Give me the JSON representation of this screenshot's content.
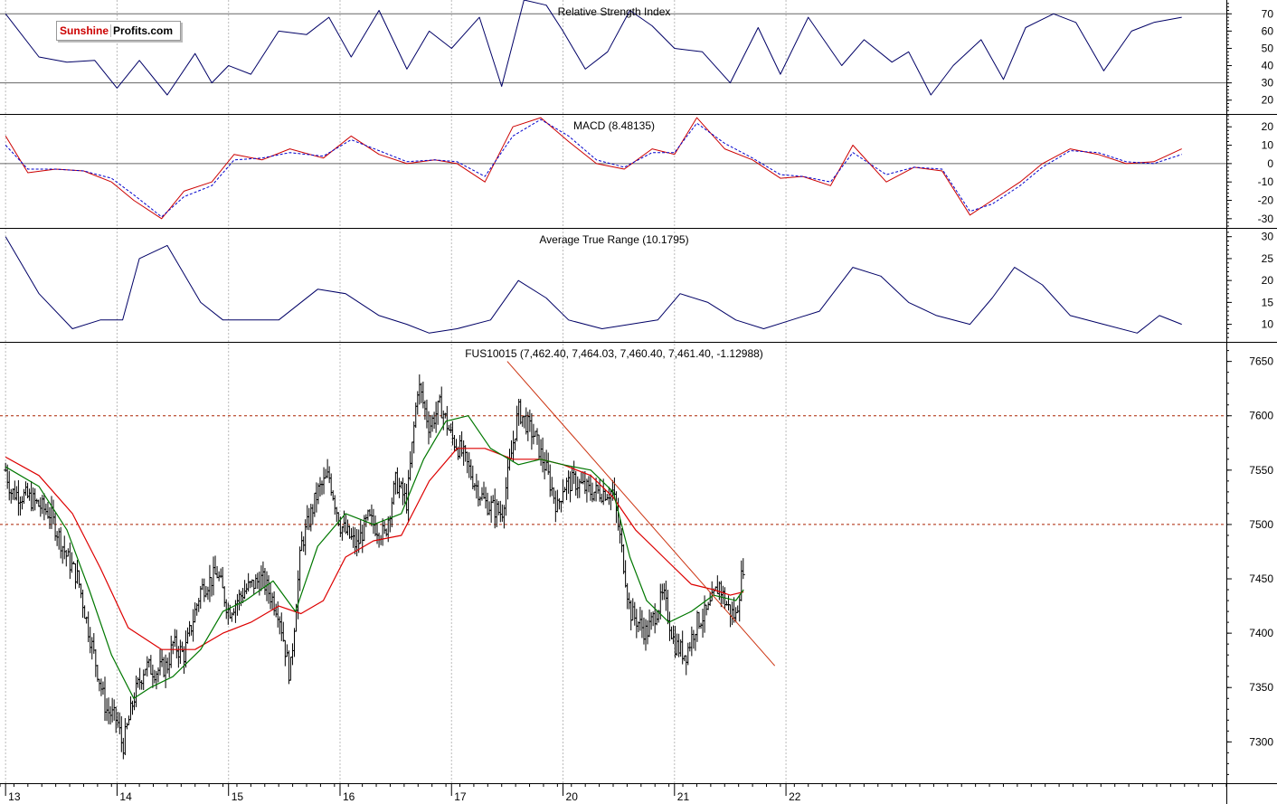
{
  "branding": {
    "logo_part1": "Sunshine",
    "logo_part2": "Profits.com"
  },
  "colors": {
    "rsi": "#000066",
    "macd": "#cc0000",
    "macd_signal": "#0000cc",
    "atr": "#000066",
    "price": "#000000",
    "ma_short": "#007700",
    "ma_long": "#dd0000",
    "trendline": "#cc3311",
    "refline": "#aa2200"
  },
  "chart_data": [
    {
      "type": "line",
      "title": "Relative Strength Index",
      "ylim": [
        12,
        78
      ],
      "yticks": [
        70,
        60,
        50,
        40,
        30,
        20
      ],
      "reference_lines": [
        70,
        30
      ],
      "x": [
        0,
        0.3,
        0.55,
        0.8,
        1.0,
        1.2,
        1.45,
        1.7,
        1.85,
        2.0,
        2.2,
        2.45,
        2.7,
        2.9,
        3.1,
        3.35,
        3.6,
        3.8,
        4.0,
        4.25,
        4.45,
        4.65,
        4.85,
        5.0,
        5.2,
        5.4,
        5.6,
        5.8,
        6.0,
        6.25,
        6.5,
        6.75,
        6.95,
        7.2,
        7.5,
        7.7,
        7.95,
        8.1,
        8.3,
        8.5,
        8.75,
        8.95,
        9.15,
        9.4,
        9.6,
        9.85,
        10.1,
        10.3,
        10.55
      ],
      "values": [
        70,
        45,
        42,
        43,
        27,
        43,
        23,
        47,
        30,
        40,
        35,
        60,
        58,
        68,
        45,
        72,
        38,
        60,
        50,
        68,
        28,
        78,
        75,
        60,
        38,
        48,
        72,
        63,
        50,
        48,
        30,
        62,
        35,
        68,
        40,
        55,
        42,
        48,
        23,
        40,
        55,
        32,
        62,
        70,
        65,
        37,
        60,
        65,
        68
      ]
    },
    {
      "type": "line",
      "title": "MACD (8.48135)",
      "ylim": [
        -35,
        27
      ],
      "yticks": [
        20,
        10,
        0,
        -10,
        -20,
        -30
      ],
      "reference_lines": [
        0
      ],
      "series": [
        {
          "role": "macd",
          "x": [
            0,
            0.2,
            0.45,
            0.7,
            0.95,
            1.15,
            1.4,
            1.6,
            1.85,
            2.05,
            2.3,
            2.55,
            2.85,
            3.1,
            3.35,
            3.6,
            3.85,
            4.05,
            4.3,
            4.55,
            4.8,
            5.05,
            5.3,
            5.55,
            5.8,
            6.0,
            6.2,
            6.45,
            6.7,
            6.95,
            7.15,
            7.4,
            7.6,
            7.9,
            8.15,
            8.4,
            8.65,
            8.85,
            9.1,
            9.3,
            9.55,
            9.8,
            10.05,
            10.3,
            10.55
          ],
          "values": [
            15,
            -5,
            -3,
            -4,
            -10,
            -20,
            -30,
            -15,
            -10,
            5,
            2,
            8,
            3,
            15,
            5,
            0,
            2,
            0,
            -10,
            20,
            25,
            12,
            0,
            -3,
            8,
            5,
            25,
            8,
            2,
            -8,
            -7,
            -12,
            10,
            -10,
            -2,
            -4,
            -28,
            -20,
            -10,
            0,
            8,
            5,
            0,
            1,
            8
          ]
        },
        {
          "role": "signal",
          "x": [
            0,
            0.2,
            0.45,
            0.7,
            0.95,
            1.15,
            1.4,
            1.6,
            1.85,
            2.05,
            2.3,
            2.55,
            2.85,
            3.1,
            3.35,
            3.6,
            3.85,
            4.05,
            4.3,
            4.55,
            4.8,
            5.05,
            5.3,
            5.55,
            5.8,
            6.0,
            6.2,
            6.45,
            6.7,
            6.95,
            7.15,
            7.4,
            7.6,
            7.9,
            8.15,
            8.4,
            8.65,
            8.85,
            9.1,
            9.3,
            9.55,
            9.8,
            10.05,
            10.3,
            10.55
          ],
          "values": [
            10,
            -3,
            -3,
            -4,
            -8,
            -17,
            -29,
            -18,
            -12,
            2,
            3,
            6,
            4,
            13,
            7,
            1,
            2,
            1,
            -7,
            15,
            24,
            15,
            2,
            -2,
            6,
            6,
            22,
            11,
            3,
            -6,
            -7,
            -10,
            6,
            -6,
            -2,
            -3,
            -26,
            -22,
            -12,
            -2,
            7,
            6,
            1,
            0,
            5
          ]
        }
      ]
    },
    {
      "type": "line",
      "title": "Average True Range (10.1795)",
      "ylim": [
        6,
        32
      ],
      "yticks": [
        30,
        25,
        20,
        15,
        10
      ],
      "x": [
        0,
        0.3,
        0.6,
        0.85,
        1.05,
        1.2,
        1.45,
        1.75,
        1.95,
        2.2,
        2.45,
        2.8,
        3.05,
        3.35,
        3.6,
        3.8,
        4.05,
        4.35,
        4.6,
        4.85,
        5.05,
        5.35,
        5.6,
        5.85,
        6.05,
        6.3,
        6.55,
        6.8,
        7.05,
        7.3,
        7.6,
        7.85,
        8.1,
        8.35,
        8.65,
        8.85,
        9.05,
        9.3,
        9.55,
        9.85,
        10.15,
        10.35,
        10.55
      ],
      "values": [
        30,
        17,
        9,
        11,
        11,
        25,
        28,
        15,
        11,
        11,
        11,
        18,
        17,
        12,
        10,
        8,
        9,
        11,
        20,
        16,
        11,
        9,
        10,
        11,
        17,
        15,
        11,
        9,
        11,
        13,
        23,
        21,
        15,
        12,
        10,
        16,
        23,
        19,
        12,
        10,
        8,
        12,
        10
      ]
    },
    {
      "type": "line",
      "title": "FUS10015 (7,462.40, 7,464.03, 7,460.40, 7,461.40, -1.12988)",
      "ylim": [
        7262,
        7668
      ],
      "yticks": [
        7650,
        7600,
        7550,
        7500,
        7450,
        7400,
        7350,
        7300
      ],
      "reference_lines": [
        7600,
        7500
      ],
      "xlim": [
        -0.05,
        10.95
      ],
      "xticks": [
        {
          "x": 0,
          "label": "13"
        },
        {
          "x": 1,
          "label": "14"
        },
        {
          "x": 2,
          "label": "15"
        },
        {
          "x": 3,
          "label": "16"
        },
        {
          "x": 4,
          "label": "17"
        },
        {
          "x": 5,
          "label": "20"
        },
        {
          "x": 6,
          "label": "21"
        },
        {
          "x": 7,
          "label": "22"
        }
      ],
      "series": [
        {
          "role": "price",
          "x": [
            0,
            0.05,
            0.2,
            0.4,
            0.55,
            0.65,
            0.75,
            0.9,
            1.0,
            1.05,
            1.15,
            1.25,
            1.35,
            1.45,
            1.5,
            1.6,
            1.75,
            1.9,
            2.0,
            2.15,
            2.3,
            2.45,
            2.55,
            2.65,
            2.8,
            2.9,
            3.0,
            3.15,
            3.25,
            3.4,
            3.5,
            3.6,
            3.7,
            3.8,
            3.9,
            4.0,
            4.1,
            4.2,
            4.3,
            4.45,
            4.6,
            4.75,
            4.85,
            4.95,
            5.0,
            5.1,
            5.25,
            5.45,
            5.55,
            5.6,
            5.75,
            5.9,
            6.0,
            6.1,
            6.2,
            6.3,
            6.4,
            6.45,
            6.5,
            6.55,
            6.62
          ],
          "values": [
            7550,
            7530,
            7525,
            7510,
            7470,
            7450,
            7400,
            7330,
            7320,
            7295,
            7340,
            7370,
            7365,
            7370,
            7390,
            7380,
            7440,
            7455,
            7420,
            7440,
            7450,
            7420,
            7360,
            7480,
            7530,
            7545,
            7500,
            7480,
            7505,
            7490,
            7540,
            7520,
            7630,
            7590,
            7610,
            7580,
            7565,
            7540,
            7520,
            7510,
            7605,
            7580,
            7550,
            7515,
            7535,
            7540,
            7530,
            7530,
            7460,
            7420,
            7400,
            7435,
            7390,
            7380,
            7410,
            7420,
            7445,
            7430,
            7420,
            7415,
            7465
          ]
        },
        {
          "role": "ma_short",
          "x": [
            0,
            0.3,
            0.55,
            0.75,
            0.95,
            1.15,
            1.3,
            1.5,
            1.75,
            1.95,
            2.15,
            2.4,
            2.6,
            2.8,
            3.05,
            3.3,
            3.55,
            3.75,
            3.95,
            4.15,
            4.35,
            4.6,
            4.8,
            5.0,
            5.25,
            5.45,
            5.6,
            5.75,
            5.95,
            6.15,
            6.35,
            6.55,
            6.62
          ],
          "values": [
            7553,
            7535,
            7495,
            7440,
            7380,
            7340,
            7350,
            7360,
            7385,
            7420,
            7430,
            7448,
            7420,
            7480,
            7510,
            7500,
            7510,
            7560,
            7595,
            7600,
            7570,
            7555,
            7560,
            7555,
            7550,
            7530,
            7470,
            7430,
            7410,
            7420,
            7435,
            7430,
            7440
          ]
        },
        {
          "role": "ma_long",
          "x": [
            0,
            0.3,
            0.6,
            0.85,
            1.1,
            1.4,
            1.7,
            1.95,
            2.2,
            2.45,
            2.65,
            2.85,
            3.05,
            3.3,
            3.55,
            3.8,
            4.05,
            4.3,
            4.55,
            4.8,
            5.0,
            5.25,
            5.45,
            5.65,
            5.9,
            6.15,
            6.35,
            6.5,
            6.62
          ],
          "values": [
            7562,
            7545,
            7510,
            7460,
            7405,
            7385,
            7385,
            7400,
            7410,
            7425,
            7418,
            7430,
            7470,
            7485,
            7490,
            7540,
            7570,
            7570,
            7560,
            7560,
            7555,
            7545,
            7525,
            7495,
            7470,
            7445,
            7440,
            7435,
            7438
          ]
        },
        {
          "role": "trendline",
          "x": [
            4.5,
            6.9
          ],
          "values": [
            7650,
            7370
          ]
        }
      ]
    }
  ]
}
